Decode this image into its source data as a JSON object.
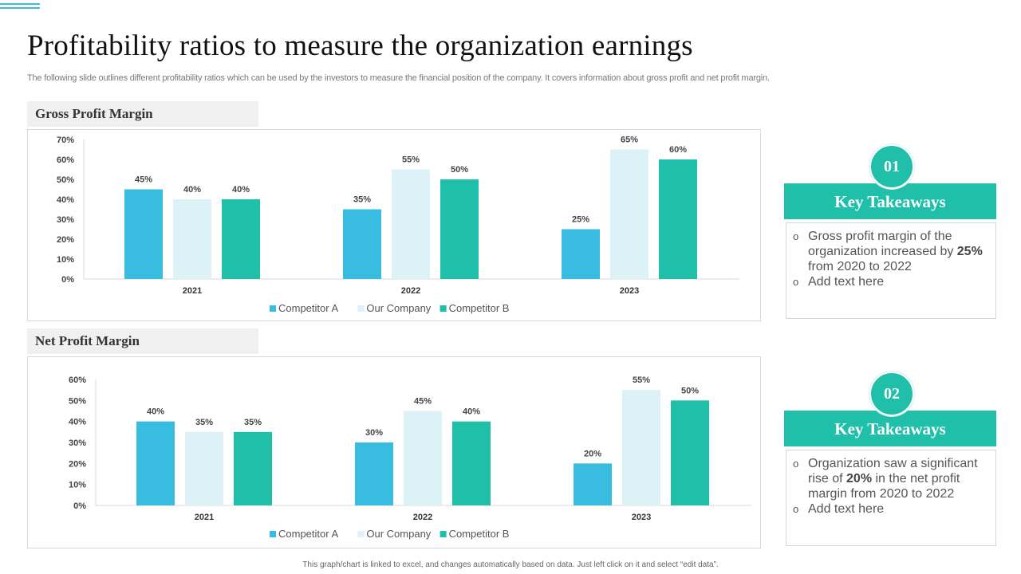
{
  "page": {
    "title": "Profitability ratios to measure the organization earnings",
    "subtitle": "The following slide outlines different profitability ratios which can be used by the investors to measure the financial position of the company. It covers information about gross profit and net profit margin.",
    "footer": "This graph/chart is linked to excel, and changes automatically based on data. Just left click on it and select “edit data”.",
    "accent_color": "#1fbfaa"
  },
  "sections": [
    {
      "label": "Gross Profit Margin"
    },
    {
      "label": "Net Profit Margin"
    }
  ],
  "takeaways": [
    {
      "number": "01",
      "heading": "Key Takeaways",
      "bullet_icon": "hollow-circle-bullet",
      "items": [
        {
          "before": "Gross profit margin of the organization increased by ",
          "bold": "25%",
          "after": " from 2020 to 2022"
        },
        {
          "before": "Add text here",
          "bold": "",
          "after": ""
        }
      ]
    },
    {
      "number": "02",
      "heading": "Key Takeaways",
      "bullet_icon": "hollow-circle-bullet",
      "items": [
        {
          "before": "Organization saw a significant rise of ",
          "bold": "20%",
          "after": " in the net profit margin from 2020 to 2022"
        },
        {
          "before": "Add text here",
          "bold": "",
          "after": ""
        }
      ]
    }
  ],
  "chart_data": [
    {
      "type": "bar",
      "title": "Gross Profit Margin",
      "xlabel": "",
      "ylabel": "",
      "categories": [
        "2021",
        "2022",
        "2023"
      ],
      "series": [
        {
          "name": "Competitor A",
          "color": "#38bde0",
          "values": [
            45,
            35,
            25
          ]
        },
        {
          "name": "Our Company",
          "color": "#dcf2f7",
          "values": [
            40,
            55,
            65
          ]
        },
        {
          "name": "Competitor B",
          "color": "#1fbfaa",
          "values": [
            40,
            50,
            60
          ]
        }
      ],
      "ylim": [
        0,
        70
      ],
      "yticks": [
        "0%",
        "10%",
        "20%",
        "30%",
        "40%",
        "50%",
        "60%",
        "70%"
      ],
      "value_suffix": "%",
      "grid": false,
      "legend": "bottom-center"
    },
    {
      "type": "bar",
      "title": "Net Profit Margin",
      "xlabel": "",
      "ylabel": "",
      "categories": [
        "2021",
        "2022",
        "2023"
      ],
      "series": [
        {
          "name": "Competitor A",
          "color": "#38bde0",
          "values": [
            40,
            30,
            20
          ]
        },
        {
          "name": "Our Company",
          "color": "#dcf2f7",
          "values": [
            35,
            45,
            55
          ]
        },
        {
          "name": "Competitor B",
          "color": "#1fbfaa",
          "values": [
            35,
            40,
            50
          ]
        }
      ],
      "ylim": [
        0,
        60
      ],
      "yticks": [
        "0%",
        "10%",
        "20%",
        "30%",
        "40%",
        "50%",
        "60%"
      ],
      "value_suffix": "%",
      "grid": false,
      "legend": "bottom-center"
    }
  ]
}
